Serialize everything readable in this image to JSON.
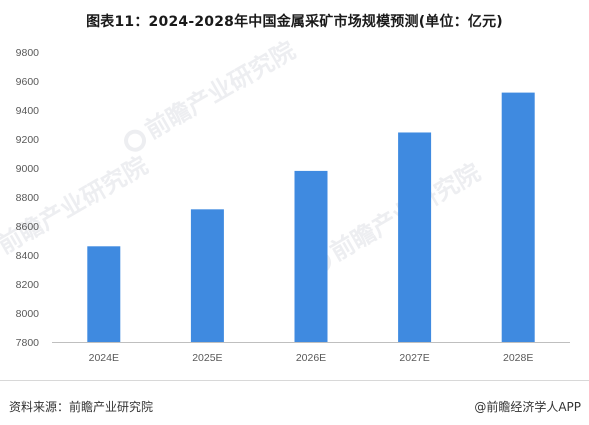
{
  "title": "图表11：2024-2028年中国金属采矿市场规模预测(单位：亿元)",
  "source": "资料来源：前瞻产业研究院",
  "brand": "@前瞻经济学人APP",
  "watermark": "前瞻产业研究院",
  "colors": {
    "bar": "#3f8ae0",
    "axis": "#bfbfbf",
    "tick_text": "#595959"
  },
  "chart_data": {
    "type": "bar",
    "categories": [
      "2024E",
      "2025E",
      "2026E",
      "2027E",
      "2028E"
    ],
    "values": [
      8460,
      8715,
      8980,
      9245,
      9520
    ],
    "title": "图表11：2024-2028年中国金属采矿市场规模预测(单位：亿元)",
    "xlabel": "",
    "ylabel": "",
    "ylim": [
      7800,
      9800
    ],
    "yticks": [
      7800,
      8000,
      8200,
      8400,
      8600,
      8800,
      9000,
      9200,
      9400,
      9600,
      9800
    ],
    "grid": false,
    "legend": "none"
  }
}
